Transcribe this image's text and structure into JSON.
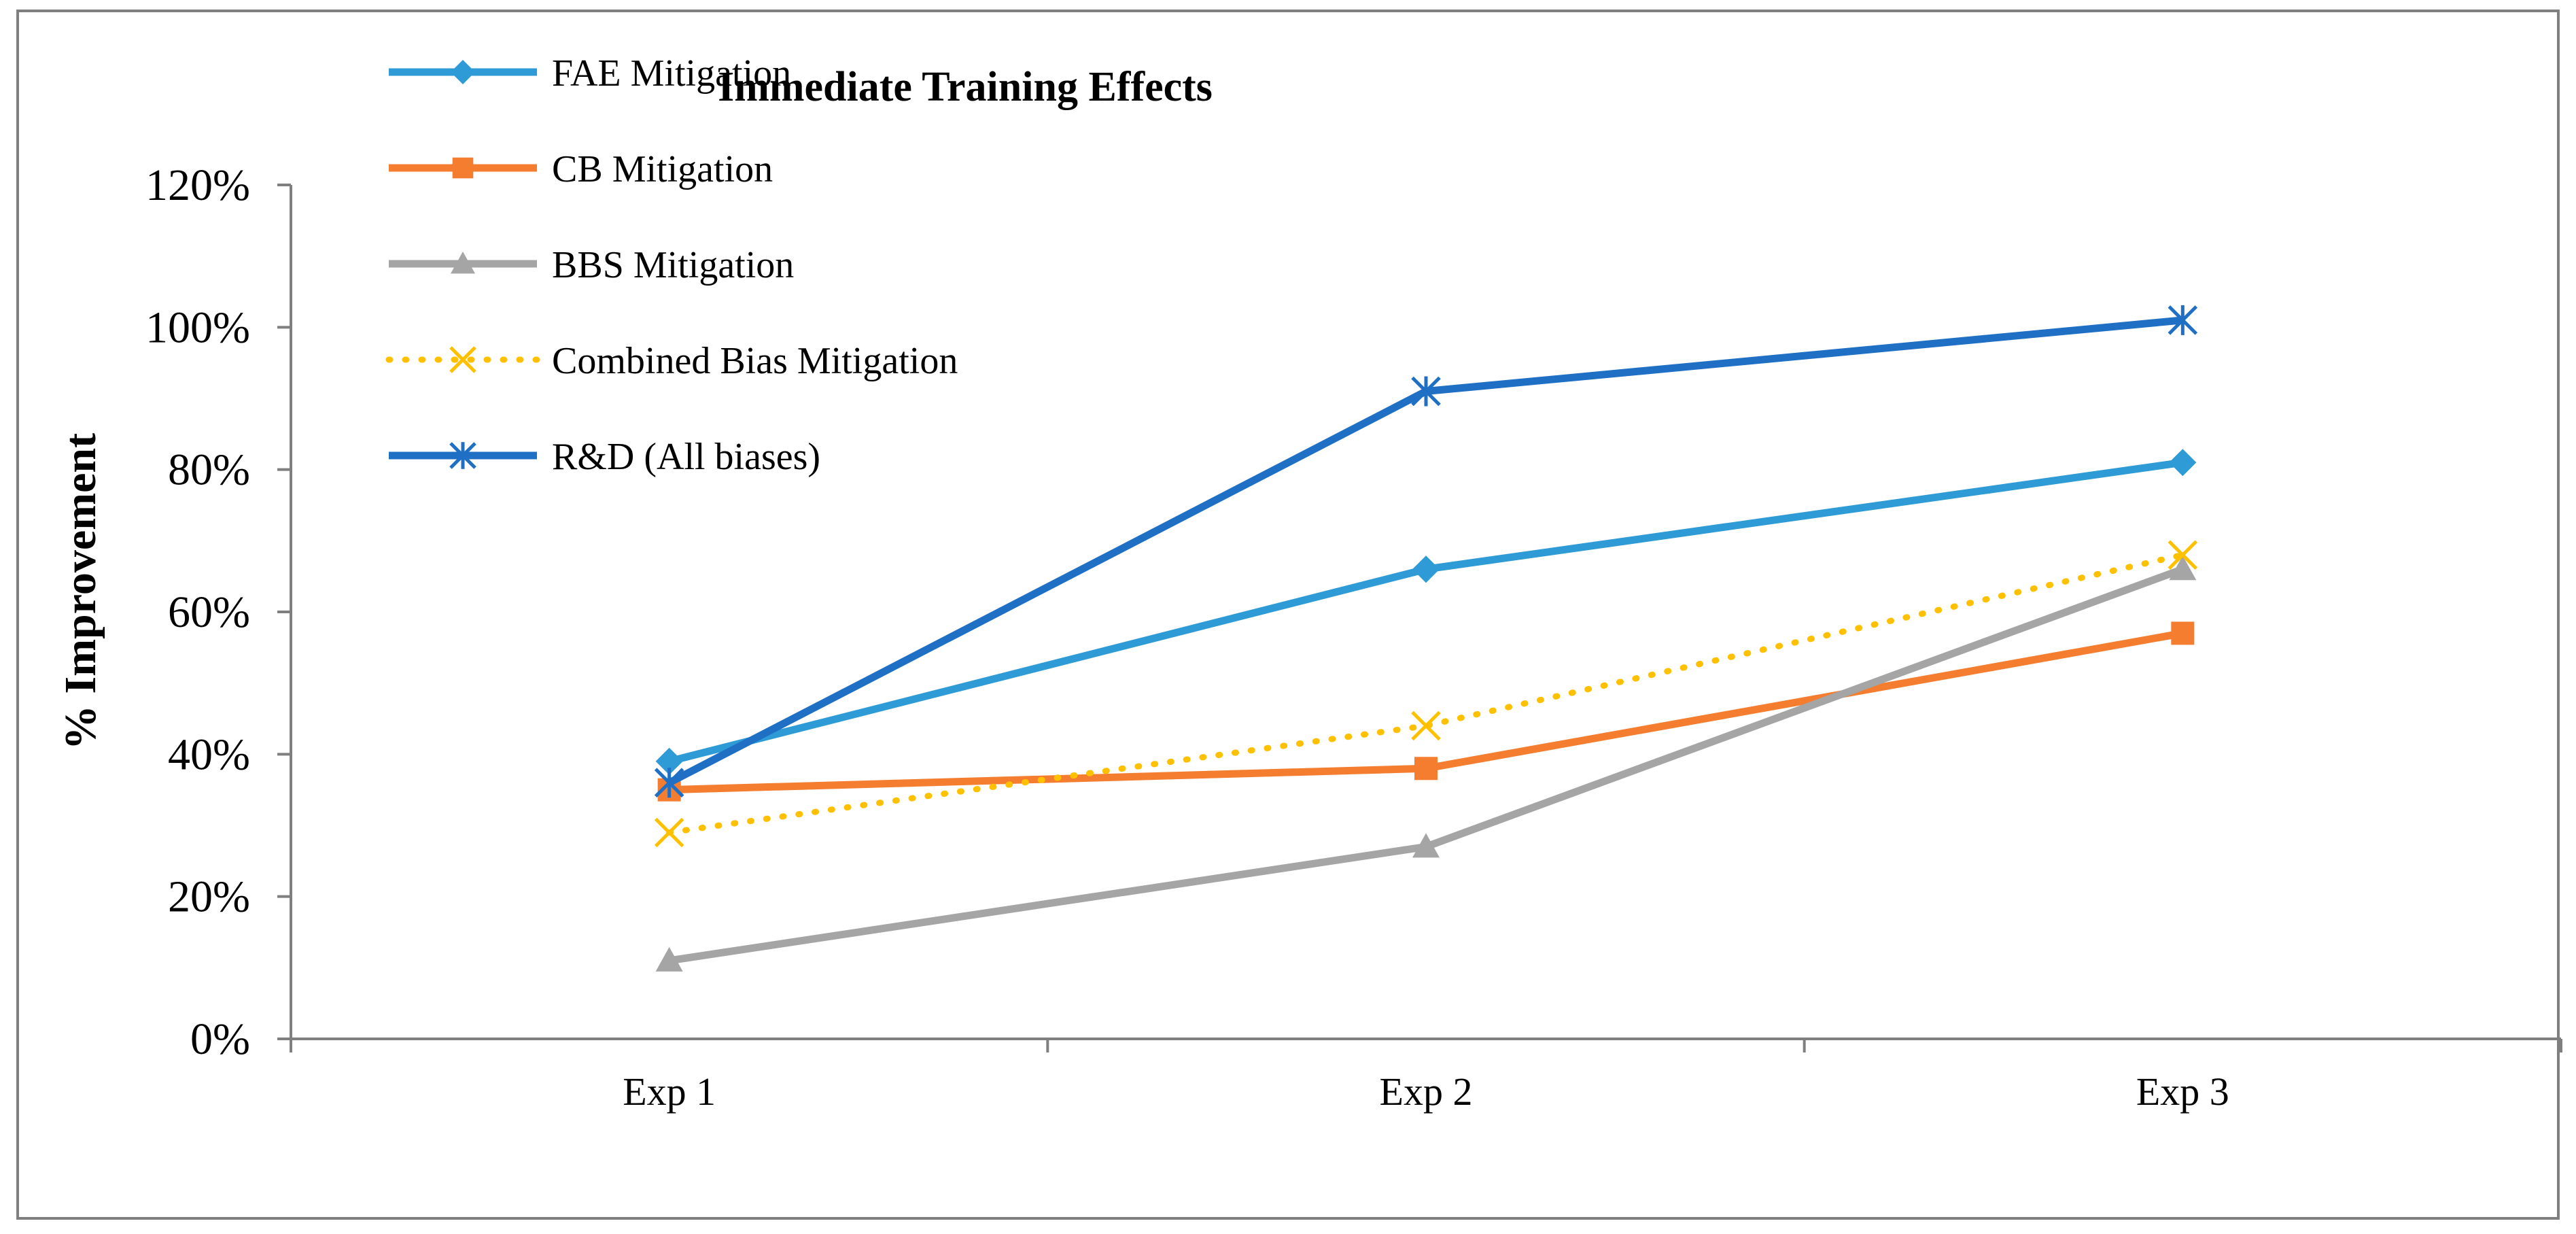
{
  "chart_data": {
    "type": "line",
    "title": "Immediate Training Effects",
    "ylabel": "% Improvement",
    "xlabel": "",
    "categories": [
      "Exp 1",
      "Exp 2",
      "Exp 3"
    ],
    "ylim": [
      0,
      120
    ],
    "yticks": [
      0,
      20,
      40,
      60,
      80,
      100,
      120
    ],
    "ytick_labels": [
      "0%",
      "20%",
      "40%",
      "60%",
      "80%",
      "100%",
      "120%"
    ],
    "grid": false,
    "legend_position": "top-left",
    "series": [
      {
        "name": "FAE Mitigation",
        "values": [
          39,
          66,
          81
        ],
        "color": "#2e9bd6",
        "marker": "diamond",
        "dash": false
      },
      {
        "name": "CB Mitigation",
        "values": [
          35,
          38,
          57
        ],
        "color": "#f47d30",
        "marker": "square",
        "dash": false
      },
      {
        "name": "BBS Mitigation",
        "values": [
          11,
          27,
          66
        ],
        "color": "#a5a5a5",
        "marker": "triangle",
        "dash": false
      },
      {
        "name": "Combined Bias Mitigation",
        "values": [
          29,
          44,
          68
        ],
        "color": "#ffc000",
        "marker": "x",
        "dash": true
      },
      {
        "name": "R&D (All biases)",
        "values": [
          36,
          91,
          101
        ],
        "color": "#1f6fc5",
        "marker": "star",
        "dash": false
      }
    ]
  }
}
